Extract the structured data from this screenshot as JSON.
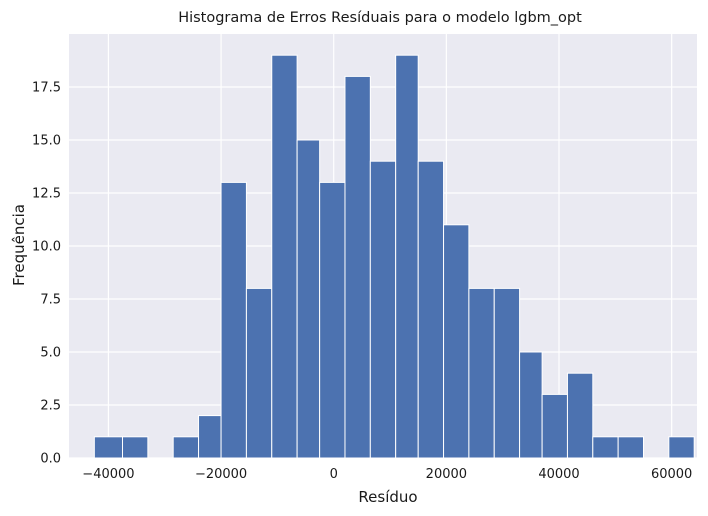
{
  "chart_data": {
    "type": "bar",
    "title": "Histograma de Erros Resíduais para o modelo lgbm_opt",
    "xlabel": "Resíduo",
    "ylabel": "Frequência",
    "bins": {
      "edges": [
        -42500,
        -37500,
        -33000,
        -28500,
        -24000,
        -20000,
        -15500,
        -11000,
        -6500,
        -2500,
        2000,
        6500,
        11000,
        15000,
        19500,
        24000,
        28500,
        33000,
        37000,
        41500,
        46000,
        50500,
        55000,
        59500
      ],
      "counts": [
        1,
        1,
        0,
        1,
        2,
        13,
        8,
        19,
        15,
        13,
        18,
        14,
        19,
        14,
        11,
        8,
        8,
        5,
        3,
        4,
        1,
        1,
        0,
        1
      ]
    },
    "xlim": [
      -47000,
      64500
    ],
    "ylim": [
      0,
      20.0
    ],
    "xticks": [
      -40000,
      -20000,
      0,
      20000,
      40000,
      60000
    ],
    "xtick_labels": [
      "−40000",
      "−20000",
      "0",
      "20000",
      "40000",
      "60000"
    ],
    "yticks": [
      0,
      2.5,
      5,
      7.5,
      10,
      12.5,
      15,
      17.5
    ],
    "ytick_labels": [
      "0.0",
      "2.5",
      "5.0",
      "7.5",
      "10.0",
      "12.5",
      "15.0",
      "17.5"
    ],
    "grid": true,
    "colors": {
      "bar": "#4c72b0",
      "background": "#eaeaf2",
      "grid": "#ffffff"
    }
  }
}
